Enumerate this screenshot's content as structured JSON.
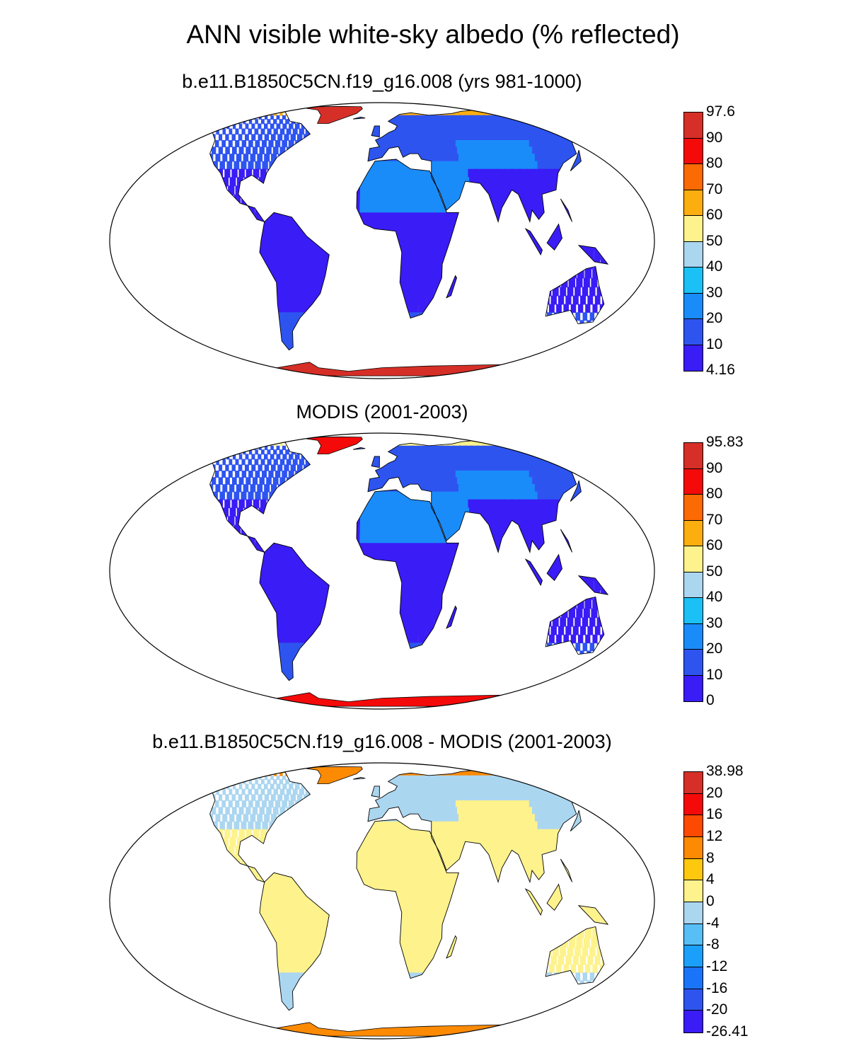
{
  "title": "ANN visible white-sky albedo (% reflected)",
  "panels": [
    {
      "title": "b.e11.B1850C5CN.f19_g16.008 (yrs 981-1000)",
      "colorbar": {
        "labels": [
          "97.6",
          "90",
          "80",
          "70",
          "60",
          "50",
          "40",
          "30",
          "20",
          "10",
          "4.16"
        ],
        "colors": [
          "#d62f27",
          "#f50a0a",
          "#fc6a03",
          "#fdae0f",
          "#fef28c",
          "#abd6f0",
          "#1ac0f6",
          "#1a8cfa",
          "#2e54f0",
          "#3a1cf6"
        ]
      },
      "land": {
        "low_lat": "#3a1cf6",
        "mid_lat": "#2e54f0",
        "desert": "#1a8cfa",
        "arctic": "#fdae0f",
        "ice": "#d62f27"
      }
    },
    {
      "title": "MODIS (2001-2003)",
      "colorbar": {
        "labels": [
          "95.83",
          "90",
          "80",
          "70",
          "60",
          "50",
          "40",
          "30",
          "20",
          "10",
          "0"
        ],
        "colors": [
          "#d62f27",
          "#f50a0a",
          "#fc6a03",
          "#fdae0f",
          "#fef28c",
          "#abd6f0",
          "#1ac0f6",
          "#1a8cfa",
          "#2e54f0",
          "#3a1cf6"
        ]
      },
      "land": {
        "low_lat": "#3a1cf6",
        "mid_lat": "#2e54f0",
        "desert": "#1a8cfa",
        "arctic": "#fef28c",
        "ice": "#f50a0a"
      }
    },
    {
      "title": "b.e11.B1850C5CN.f19_g16.008 - MODIS (2001-2003)",
      "colorbar": {
        "labels": [
          "38.98",
          "20",
          "16",
          "12",
          "8",
          "4",
          "0",
          "-4",
          "-8",
          "-12",
          "-16",
          "-20",
          "-26.41"
        ],
        "colors": [
          "#d62f27",
          "#f50a0a",
          "#fc4a03",
          "#fc8a03",
          "#fec80f",
          "#fef28c",
          "#abd6f0",
          "#58bef6",
          "#1aa0fa",
          "#1a74fa",
          "#2e54f0",
          "#3a1cf6"
        ]
      },
      "land": {
        "low_lat": "#fef28c",
        "mid_lat": "#abd6f0",
        "desert": "#fef28c",
        "arctic": "#fc8a03",
        "ice": "#fc8a03"
      }
    }
  ]
}
